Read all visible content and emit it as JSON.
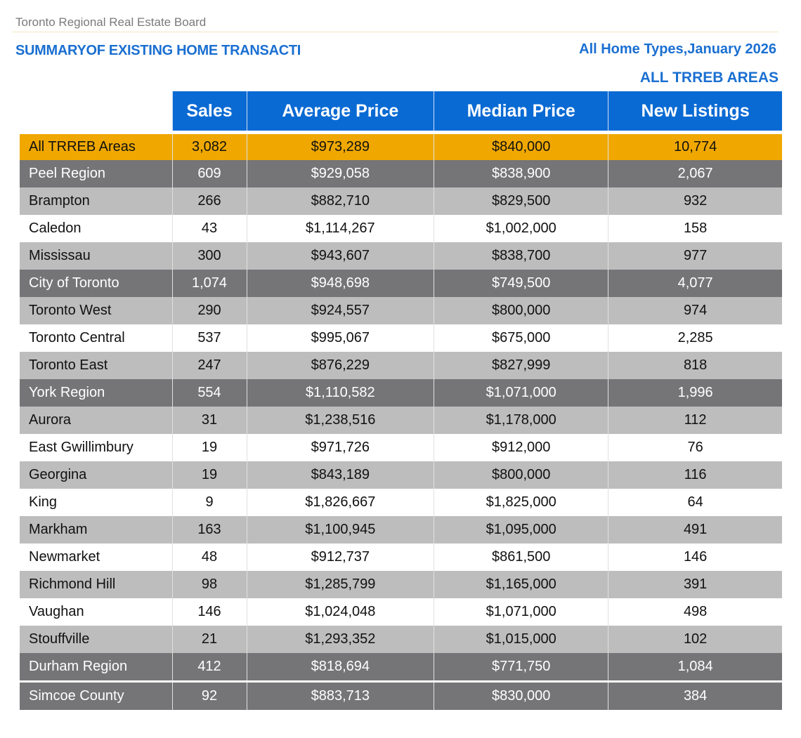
{
  "organization": "Toronto Regional Real Estate Board",
  "title": "SUMMARYOF EXISTING HOME TRANSACTI",
  "subtitle": "All Home Types,January 2026",
  "area_label": "ALL TRREB AREAS",
  "columns": [
    "Sales",
    "Average Price",
    "Median Price",
    "New Listings"
  ],
  "colors": {
    "header": "#0a6ad3",
    "total": "#f0a800",
    "region": "#757578",
    "alt": "#bdbdbd",
    "title": "#1a6fd1"
  },
  "rows": [
    {
      "type": "gold",
      "area": "All TRREB Areas",
      "sales": "3,082",
      "avg": "$973,289",
      "median": "$840,000",
      "listings": "10,774"
    },
    {
      "type": "dark",
      "area": "Peel Region",
      "sales": "609",
      "avg": "$929,058",
      "median": "$838,900",
      "listings": "2,067"
    },
    {
      "type": "light",
      "area": "Brampton",
      "sales": "266",
      "avg": "$882,710",
      "median": "$829,500",
      "listings": "932"
    },
    {
      "type": "white",
      "area": "Caledon",
      "sales": "43",
      "avg": "$1,114,267",
      "median": "$1,002,000",
      "listings": "158"
    },
    {
      "type": "light",
      "area": "Mississau",
      "sales": "300",
      "avg": "$943,607",
      "median": "$838,700",
      "listings": "977"
    },
    {
      "type": "dark",
      "area": "City of Toronto",
      "sales": "1,074",
      "avg": "$948,698",
      "median": "$749,500",
      "listings": "4,077"
    },
    {
      "type": "light",
      "area": "Toronto West",
      "sales": "290",
      "avg": "$924,557",
      "median": "$800,000",
      "listings": "974"
    },
    {
      "type": "white",
      "area": "Toronto Central",
      "sales": "537",
      "avg": "$995,067",
      "median": "$675,000",
      "listings": "2,285"
    },
    {
      "type": "light",
      "area": "Toronto East",
      "sales": "247",
      "avg": "$876,229",
      "median": "$827,999",
      "listings": "818"
    },
    {
      "type": "dark",
      "area": "York Region",
      "sales": "554",
      "avg": "$1,110,582",
      "median": "$1,071,000",
      "listings": "1,996"
    },
    {
      "type": "light",
      "area": "Aurora",
      "sales": "31",
      "avg": "$1,238,516",
      "median": "$1,178,000",
      "listings": "112"
    },
    {
      "type": "white",
      "area": "East Gwillimbury",
      "sales": "19",
      "avg": "$971,726",
      "median": "$912,000",
      "listings": "76"
    },
    {
      "type": "light",
      "area": "Georgina",
      "sales": "19",
      "avg": "$843,189",
      "median": "$800,000",
      "listings": "116"
    },
    {
      "type": "white",
      "area": "King",
      "sales": "9",
      "avg": "$1,826,667",
      "median": "$1,825,000",
      "listings": "64"
    },
    {
      "type": "light",
      "area": "Markham",
      "sales": "163",
      "avg": "$1,100,945",
      "median": "$1,095,000",
      "listings": "491"
    },
    {
      "type": "white",
      "area": "Newmarket",
      "sales": "48",
      "avg": "$912,737",
      "median": "$861,500",
      "listings": "146"
    },
    {
      "type": "light",
      "area": "Richmond Hill",
      "sales": "98",
      "avg": "$1,285,799",
      "median": "$1,165,000",
      "listings": "391"
    },
    {
      "type": "white",
      "area": "Vaughan",
      "sales": "146",
      "avg": "$1,024,048",
      "median": "$1,071,000",
      "listings": "498"
    },
    {
      "type": "light",
      "area": "Stouffville",
      "sales": "21",
      "avg": "$1,293,352",
      "median": "$1,015,000",
      "listings": "102"
    },
    {
      "type": "dark",
      "area": "Durham Region",
      "sales": "412",
      "avg": "$818,694",
      "median": "$771,750",
      "listings": "1,084"
    },
    {
      "type": "dark",
      "area": "Simcoe County",
      "sales": "92",
      "avg": "$883,713",
      "median": "$830,000",
      "listings": "384"
    }
  ]
}
